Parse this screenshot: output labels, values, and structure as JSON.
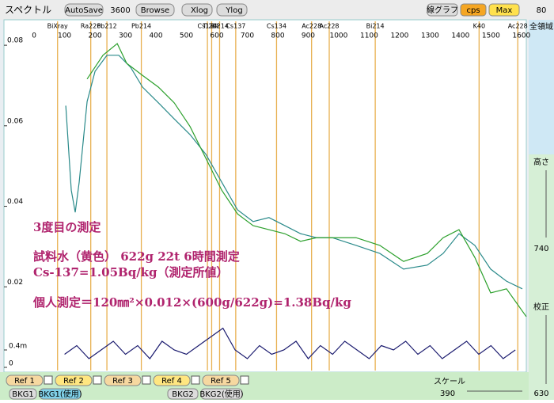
{
  "toolbar": {
    "title": "スペクトル",
    "autosave": "AutoSave",
    "time": "3600",
    "browse": "Browse",
    "xlog": "Xlog",
    "ylog": "Ylog",
    "graph": "線グラフ",
    "cps": "cps",
    "max": "Max"
  },
  "side": {
    "top": "80",
    "range": "全領域",
    "height_label": "高さ",
    "height": "740",
    "calib_label": "校正",
    "calib": "630"
  },
  "bottom": {
    "refs": [
      "Ref 1",
      "Ref 2",
      "Ref 3",
      "Ref 4",
      "Ref 5"
    ],
    "bkg1": "BKG1",
    "bkg1_used": "BKG1(使用)",
    "bkg2": "BKG2",
    "bkg2_used": "BKG2(使用)",
    "scale_label": "スケール",
    "scale": "390"
  },
  "chart_data": {
    "type": "line",
    "xlim": [
      -99,
      1616
    ],
    "ylim": [
      0,
      0.086
    ],
    "xticks": [
      0,
      100,
      200,
      300,
      400,
      500,
      600,
      700,
      800,
      900,
      1000,
      1100,
      1200,
      1300,
      1400,
      1500,
      1600
    ],
    "yticks": [
      0.02,
      0.04,
      0.06,
      0.08
    ],
    "series": [
      {
        "color": "#2a8a8a",
        "x": [
          104,
          122,
          135,
          148,
          174,
          200,
          239,
          278,
          317,
          356,
          408,
          460,
          512,
          564,
          616,
          668,
          719,
          771,
          823,
          875,
          927,
          979,
          1057,
          1135,
          1213,
          1291,
          1343,
          1395,
          1447,
          1499,
          1551,
          1603
        ],
        "values": [
          0.065,
          0.044,
          0.0385,
          0.046,
          0.066,
          0.0735,
          0.0775,
          0.0775,
          0.0745,
          0.0696,
          0.0657,
          0.0617,
          0.0578,
          0.0529,
          0.046,
          0.0391,
          0.0362,
          0.0372,
          0.0352,
          0.0332,
          0.0322,
          0.0322,
          0.0303,
          0.0283,
          0.0244,
          0.0254,
          0.0283,
          0.0332,
          0.0303,
          0.0244,
          0.0214,
          0.0195
        ]
      },
      {
        "color": "#2ca02c",
        "x": [
          174,
          226,
          273,
          304,
          356,
          408,
          460,
          512,
          564,
          616,
          668,
          719,
          771,
          823,
          875,
          927,
          979,
          1057,
          1135,
          1213,
          1291,
          1343,
          1395,
          1447,
          1499,
          1551,
          1616
        ],
        "values": [
          0.0716,
          0.0775,
          0.0804,
          0.0755,
          0.0725,
          0.0696,
          0.0657,
          0.0598,
          0.0519,
          0.044,
          0.0381,
          0.0352,
          0.0342,
          0.0332,
          0.0313,
          0.0322,
          0.0322,
          0.0322,
          0.0303,
          0.0263,
          0.0283,
          0.0322,
          0.0342,
          0.0273,
          0.0185,
          0.0195,
          0.0126
        ]
      }
    ],
    "markers": [
      {
        "label": "BiXray",
        "x": 77
      },
      {
        "label": "Ra226",
        "x": 186
      },
      {
        "label": "Pb212",
        "x": 239
      },
      {
        "label": "Pb214",
        "x": 352
      },
      {
        "label": "Cs134",
        "x": 569
      },
      {
        "label": "Tl208",
        "x": 583
      },
      {
        "label": "Bi214",
        "x": 609
      },
      {
        "label": "Cs137",
        "x": 662
      },
      {
        "label": "Cs134",
        "x": 796
      },
      {
        "label": "Ac228",
        "x": 911
      },
      {
        "label": "Ac228",
        "x": 969
      },
      {
        "label": "Bi214",
        "x": 1120
      },
      {
        "label": "K40",
        "x": 1461
      },
      {
        "label": "Ac228",
        "x": 1588
      }
    ],
    "annotations": [
      "3度目の測定",
      "試料水（黄色） 622g 22t 6時間測定",
      "Cs-137=1.05Bq/kg（測定所値）",
      "個人測定＝120㎜²×0.012×(600g/622g)=1.38Bq/kg"
    ],
    "lower": {
      "color": "#1a1a6e",
      "ylim": [
        0,
        0.001
      ],
      "yticks": [
        0,
        {
          "value": 0.0004,
          "label": "0.4m"
        }
      ],
      "x": [
        100,
        140,
        180,
        220,
        260,
        300,
        340,
        380,
        420,
        460,
        500,
        540,
        580,
        620,
        660,
        700,
        740,
        780,
        820,
        860,
        900,
        940,
        980,
        1020,
        1060,
        1100,
        1140,
        1180,
        1220,
        1260,
        1300,
        1340,
        1380,
        1420,
        1460,
        1500,
        1540,
        1580
      ],
      "values": [
        0.0003,
        0.0005,
        0.0002,
        0.0004,
        0.0006,
        0.0003,
        0.0005,
        0.0002,
        0.0006,
        0.0004,
        0.0003,
        0.0005,
        0.0007,
        0.0009,
        0.0004,
        0.0002,
        0.0005,
        0.0003,
        0.0004,
        0.0006,
        0.0002,
        0.0005,
        0.0003,
        0.0006,
        0.0004,
        0.0002,
        0.0005,
        0.0004,
        0.0006,
        0.0003,
        0.0005,
        0.0002,
        0.0004,
        0.0006,
        0.0003,
        0.0005,
        0.0002,
        0.0004
      ]
    }
  }
}
